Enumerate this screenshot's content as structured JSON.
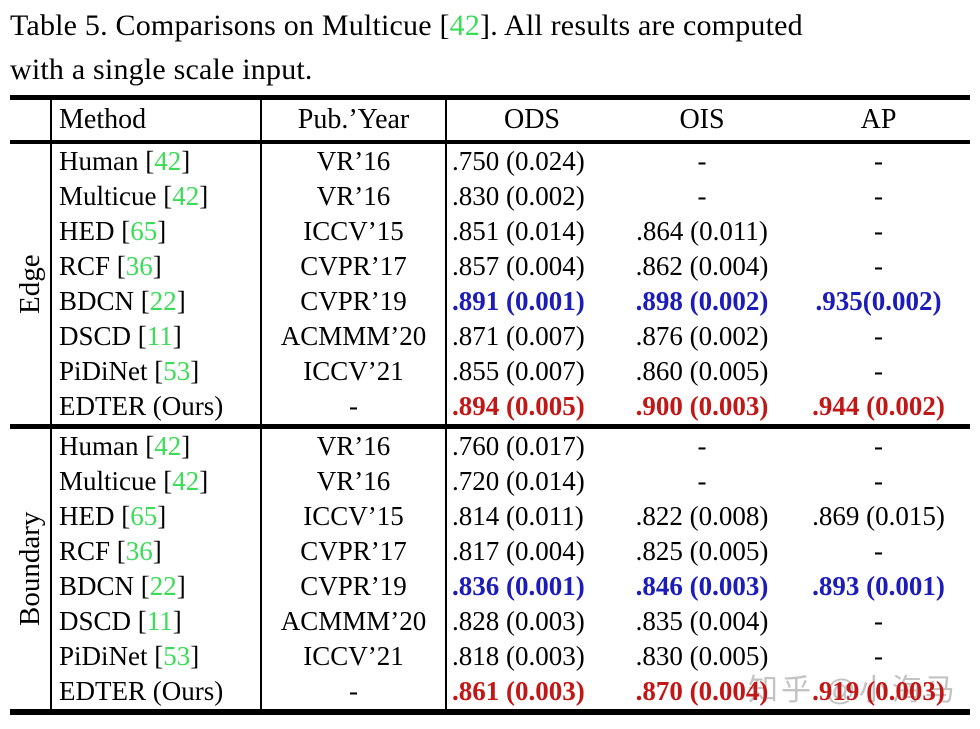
{
  "caption": {
    "prefix": "Table 5. Comparisons on Multicue [",
    "cite": "42",
    "suffix": "]. All results are computed",
    "line2": "with a single scale input."
  },
  "header": {
    "method": "Method",
    "pub": "Pub.’Year",
    "ods": "ODS",
    "ois": "OIS",
    "ap": "AP"
  },
  "cite_open": " [",
  "cite_close": "]",
  "colors": {
    "citation_green": "#3cdb58",
    "best_blue": "#1c1cb8",
    "ours_red": "#c21717",
    "watermark_gray": "#c3c3c3"
  },
  "sections": [
    {
      "label": "Edge",
      "rows": [
        {
          "method": "Human",
          "cite": "42",
          "pub": "VR’16",
          "ods": ".750 (0.024)",
          "ois": "-",
          "ap": "-",
          "style": "normal"
        },
        {
          "method": "Multicue",
          "cite": "42",
          "pub": "VR’16",
          "ods": ".830 (0.002)",
          "ois": "-",
          "ap": "-",
          "style": "normal"
        },
        {
          "method": "HED",
          "cite": "65",
          "pub": "ICCV’15",
          "ods": ".851 (0.014)",
          "ois": ".864 (0.011)",
          "ap": "-",
          "style": "normal"
        },
        {
          "method": "RCF",
          "cite": "36",
          "pub": "CVPR’17",
          "ods": ".857 (0.004)",
          "ois": ".862 (0.004)",
          "ap": "-",
          "style": "normal"
        },
        {
          "method": "BDCN",
          "cite": "22",
          "pub": "CVPR’19",
          "ods": ".891 (0.001)",
          "ois": ".898 (0.002)",
          "ap": ".935(0.002)",
          "style": "best"
        },
        {
          "method": "DSCD",
          "cite": "11",
          "pub": "ACMMM’20",
          "ods": ".871 (0.007)",
          "ois": ".876 (0.002)",
          "ap": "-",
          "style": "normal"
        },
        {
          "method": "PiDiNet",
          "cite": "53",
          "pub": "ICCV’21",
          "ods": ".855 (0.007)",
          "ois": ".860 (0.005)",
          "ap": "-",
          "style": "normal"
        },
        {
          "method": "EDTER (Ours)",
          "cite": "",
          "pub": "-",
          "ods": ".894 (0.005)",
          "ois": ".900 (0.003)",
          "ap": ".944 (0.002)",
          "style": "ours"
        }
      ]
    },
    {
      "label": "Boundary",
      "rows": [
        {
          "method": "Human",
          "cite": "42",
          "pub": "VR’16",
          "ods": ".760 (0.017)",
          "ois": "-",
          "ap": "-",
          "style": "normal"
        },
        {
          "method": "Multicue",
          "cite": "42",
          "pub": "VR’16",
          "ods": ".720 (0.014)",
          "ois": "-",
          "ap": "-",
          "style": "normal"
        },
        {
          "method": "HED",
          "cite": "65",
          "pub": "ICCV’15",
          "ods": ".814 (0.011)",
          "ois": ".822 (0.008)",
          "ap": ".869 (0.015)",
          "style": "normal"
        },
        {
          "method": "RCF",
          "cite": "36",
          "pub": "CVPR’17",
          "ods": ".817 (0.004)",
          "ois": ".825 (0.005)",
          "ap": "-",
          "style": "normal"
        },
        {
          "method": "BDCN",
          "cite": "22",
          "pub": "CVPR’19",
          "ods": ".836 (0.001)",
          "ois": ".846 (0.003)",
          "ap": ".893 (0.001)",
          "style": "best"
        },
        {
          "method": "DSCD",
          "cite": "11",
          "pub": "ACMMM’20",
          "ods": ".828 (0.003)",
          "ois": ".835 (0.004)",
          "ap": "-",
          "style": "normal"
        },
        {
          "method": "PiDiNet",
          "cite": "53",
          "pub": "ICCV’21",
          "ods": ".818 (0.003)",
          "ois": ".830 (0.005)",
          "ap": "-",
          "style": "normal"
        },
        {
          "method": "EDTER (Ours)",
          "cite": "",
          "pub": "-",
          "ods": ".861 (0.003)",
          "ois": ".870 (0.004)",
          "ap": ".919 (0.003)",
          "style": "ours"
        }
      ]
    }
  ],
  "watermark": "知乎 @小海马"
}
